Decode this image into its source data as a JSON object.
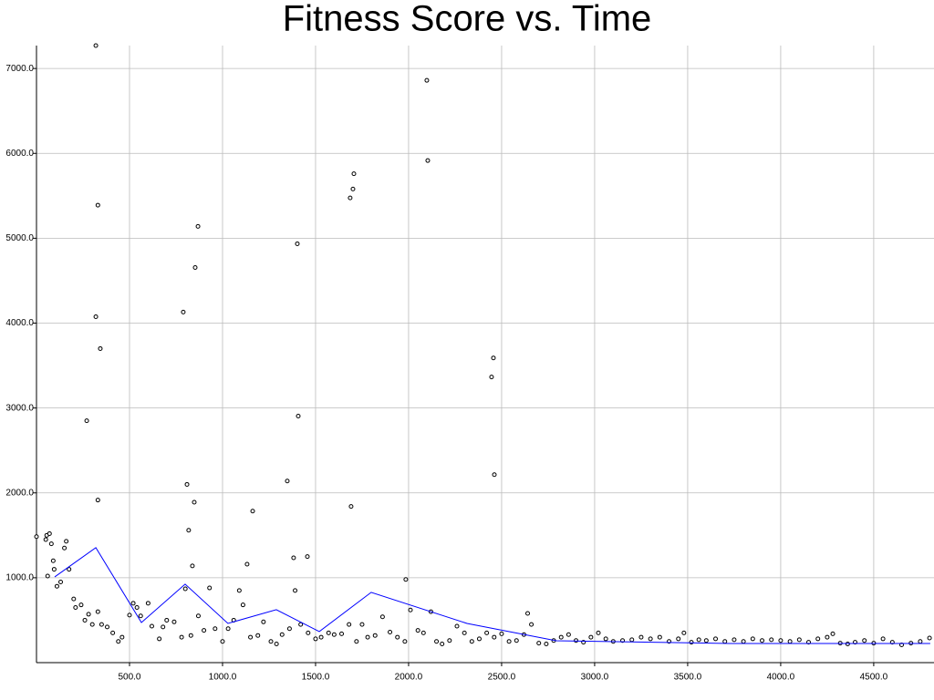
{
  "chart_data": {
    "type": "scatter",
    "title": "Fitness Score vs. Time",
    "xlim": [
      0,
      4824
    ],
    "ylim": [
      0,
      7270
    ],
    "xticks": [
      {
        "value": 500,
        "label": "500.0"
      },
      {
        "value": 1000,
        "label": "1000.0"
      },
      {
        "value": 1500,
        "label": "1500.0"
      },
      {
        "value": 2000,
        "label": "2000.0"
      },
      {
        "value": 2500,
        "label": "2500.0"
      },
      {
        "value": 3000,
        "label": "3000.0"
      },
      {
        "value": 3500,
        "label": "3500.0"
      },
      {
        "value": 4000,
        "label": "4000.0"
      },
      {
        "value": 4500,
        "label": "4500.0"
      }
    ],
    "yticks": [
      {
        "value": 1000,
        "label": "1000.0"
      },
      {
        "value": 2000,
        "label": "2000.0"
      },
      {
        "value": 3000,
        "label": "3000.0"
      },
      {
        "value": 4000,
        "label": "4000.0"
      },
      {
        "value": 5000,
        "label": "5000.0"
      },
      {
        "value": 6000,
        "label": "6000.0"
      },
      {
        "value": 7000,
        "label": "7000.0"
      }
    ],
    "grid": true,
    "series": [
      {
        "type": "scatter",
        "color": "#000000",
        "x": [
          319,
          330,
          319,
          343,
          270,
          330,
          789,
          853,
          868,
          809,
          848,
          818,
          838,
          1402,
          1407,
          1348,
          1162,
          1382,
          1456,
          1132,
          1686,
          1701,
          1706,
          1691,
          2098,
          2103,
          2456,
          2446,
          2461,
          1985,
          0,
          50,
          55,
          60,
          70,
          80,
          90,
          95,
          110,
          130,
          150,
          160,
          175,
          200,
          210,
          240,
          260,
          280,
          300,
          330,
          350,
          380,
          410,
          440,
          460,
          500,
          520,
          540,
          560,
          600,
          620,
          660,
          680,
          700,
          740,
          780,
          800,
          830,
          870,
          900,
          930,
          960,
          1000,
          1030,
          1060,
          1090,
          1110,
          1150,
          1190,
          1220,
          1260,
          1290,
          1320,
          1360,
          1390,
          1420,
          1460,
          1500,
          1530,
          1570,
          1600,
          1640,
          1680,
          1720,
          1750,
          1780,
          1820,
          1860,
          1900,
          1940,
          1980,
          2010,
          2050,
          2080,
          2120,
          2150,
          2180,
          2220,
          2260,
          2300,
          2340,
          2380,
          2420,
          2460,
          2500,
          2540,
          2580,
          2620,
          2640,
          2660,
          2700,
          2740,
          2780,
          2820,
          2860,
          2900,
          2940,
          2980,
          3020,
          3060,
          3100,
          3150,
          3200,
          3250,
          3300,
          3350,
          3400,
          3450,
          3480,
          3520,
          3560,
          3600,
          3650,
          3700,
          3750,
          3800,
          3850,
          3900,
          3950,
          4000,
          4050,
          4100,
          4150,
          4200,
          4250,
          4280,
          4320,
          4360,
          4400,
          4450,
          4500,
          4550,
          4600,
          4650,
          4700,
          4750,
          4800
        ],
        "values": [
          7270,
          5390,
          4075,
          3700,
          2850,
          1915,
          4130,
          4655,
          5140,
          2100,
          1890,
          1560,
          1140,
          4935,
          2905,
          2140,
          1785,
          1235,
          1250,
          1160,
          5475,
          5580,
          5760,
          1840,
          6860,
          5915,
          3590,
          3365,
          2215,
          980,
          1485,
          1450,
          1500,
          1020,
          1520,
          1400,
          1200,
          1100,
          900,
          950,
          1350,
          1430,
          1100,
          750,
          650,
          680,
          500,
          570,
          450,
          600,
          450,
          420,
          350,
          250,
          300,
          560,
          700,
          650,
          550,
          700,
          430,
          280,
          420,
          500,
          480,
          300,
          870,
          320,
          550,
          380,
          880,
          400,
          250,
          400,
          500,
          850,
          680,
          300,
          320,
          480,
          250,
          220,
          330,
          400,
          850,
          450,
          350,
          280,
          300,
          350,
          330,
          340,
          450,
          250,
          450,
          300,
          320,
          540,
          360,
          300,
          250,
          620,
          380,
          350,
          600,
          250,
          220,
          260,
          430,
          350,
          250,
          280,
          350,
          300,
          340,
          250,
          260,
          330,
          580,
          450,
          230,
          220,
          260,
          300,
          330,
          260,
          240,
          300,
          350,
          280,
          250,
          260,
          270,
          300,
          280,
          300,
          250,
          280,
          350,
          240,
          270,
          260,
          280,
          250,
          270,
          250,
          280,
          260,
          270,
          260,
          250,
          270,
          240,
          280,
          300,
          340,
          230,
          220,
          240,
          260,
          230,
          280,
          240,
          210,
          230,
          250,
          290
        ]
      },
      {
        "type": "line",
        "color": "#0000ff",
        "x": [
          98,
          319,
          564,
          799,
          1029,
          1289,
          1520,
          1799,
          2314,
          2794,
          3725,
          4804
        ],
        "values": [
          1010,
          1355,
          473,
          925,
          462,
          624,
          366,
          828,
          462,
          258,
          226,
          226
        ]
      }
    ]
  }
}
